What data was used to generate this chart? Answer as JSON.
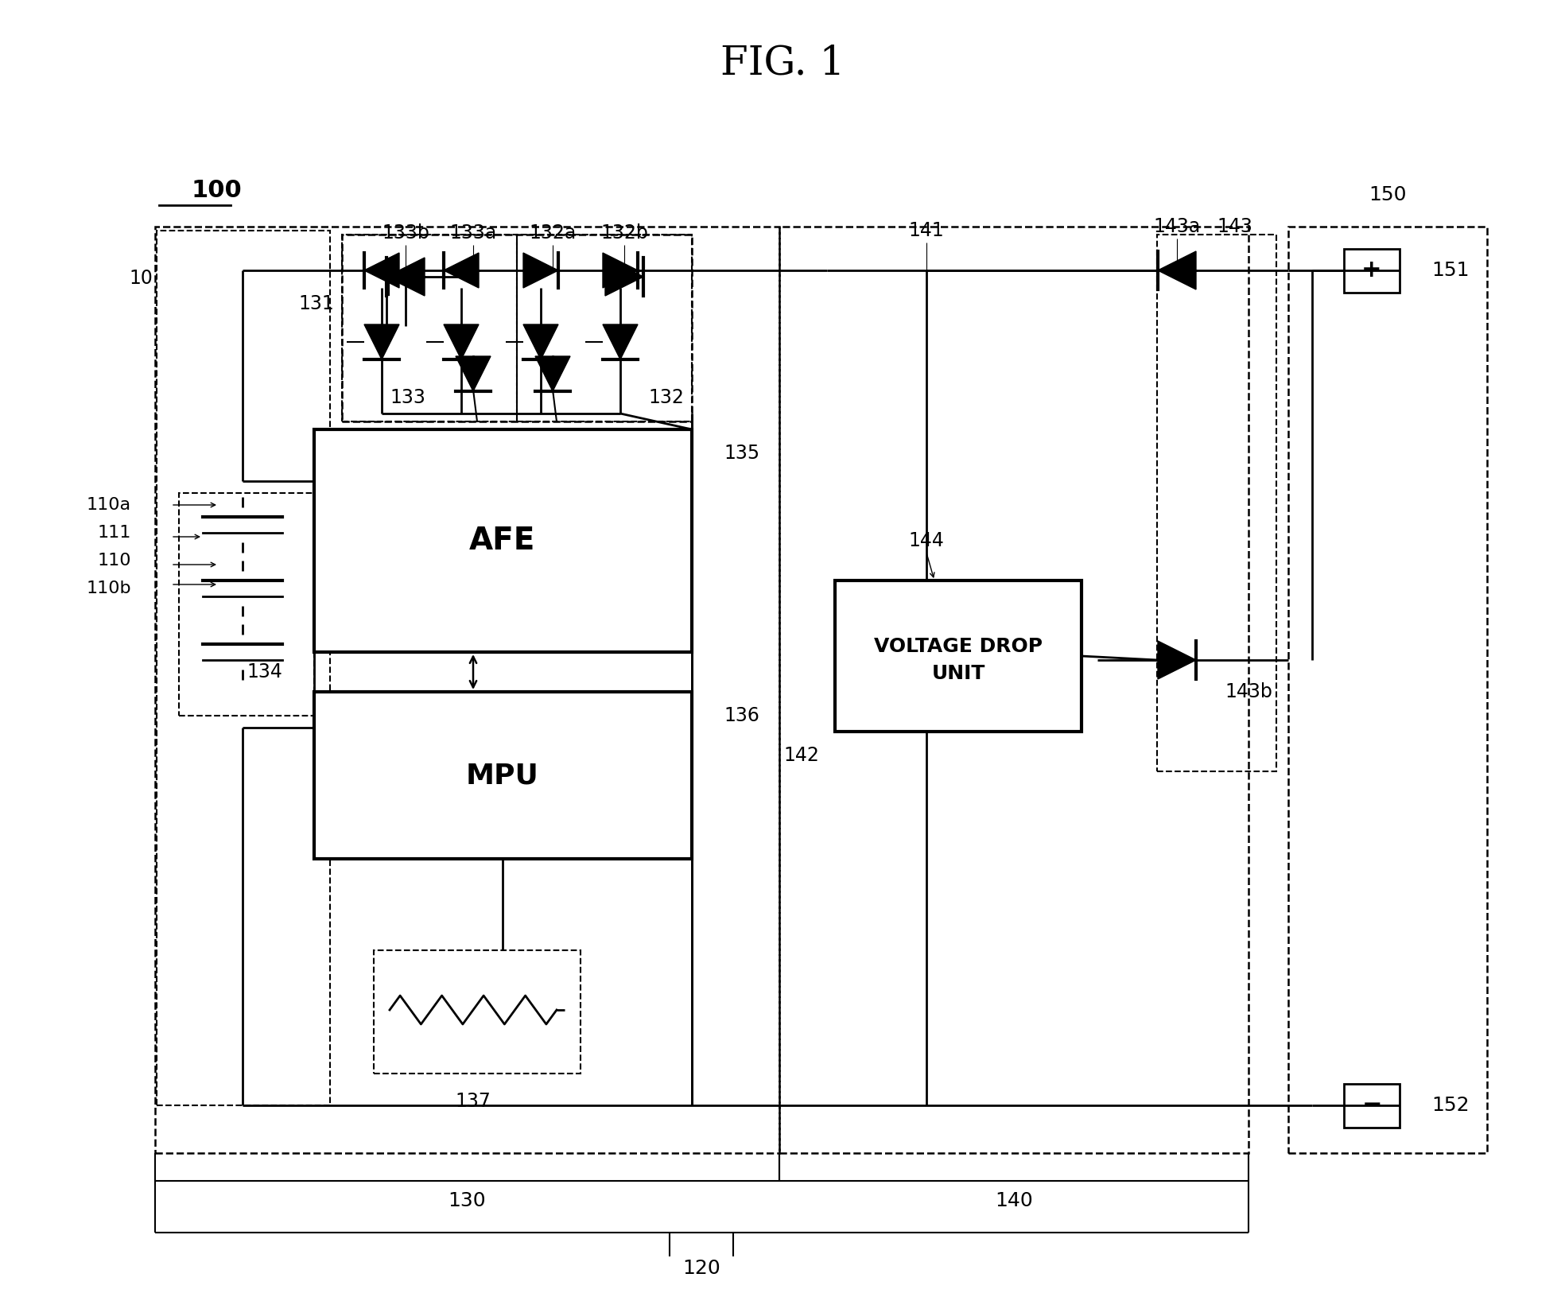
{
  "title": "FIG. 1",
  "bg_color": "#ffffff",
  "label_100": "100",
  "label_10": "10",
  "label_110a": "110a",
  "label_111": "111",
  "label_110": "110",
  "label_110b": "110b",
  "label_131": "131",
  "label_133b": "133b",
  "label_133a": "133a",
  "label_132a": "132a",
  "label_132b": "132b",
  "label_133": "133",
  "label_132": "132",
  "label_134": "134",
  "label_135": "135",
  "label_136": "136",
  "label_137": "137",
  "label_AFE": "AFE",
  "label_MPU": "MPU",
  "label_130": "130",
  "label_140": "140",
  "label_120": "120",
  "label_141": "141",
  "label_142": "142",
  "label_143": "143",
  "label_143a": "143a",
  "label_143b": "143b",
  "label_144": "144",
  "label_VDU_line1": "VOLTAGE DROP",
  "label_VDU_line2": "UNIT",
  "label_150": "150",
  "label_151": "151",
  "label_152": "152"
}
